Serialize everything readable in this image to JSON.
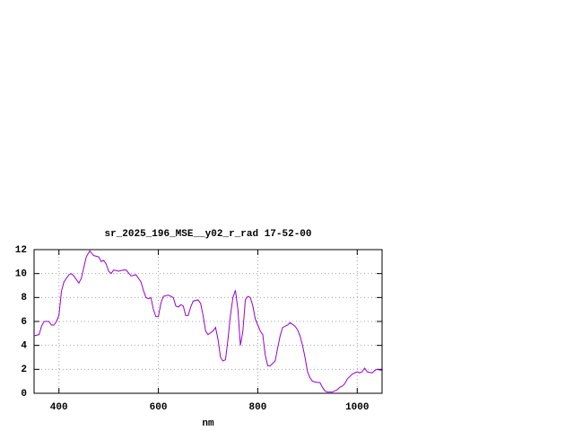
{
  "chart_data": {
    "type": "line",
    "title": "sr_2025_196_MSE__y02_r_rad 17-52-00",
    "x_label": "nm",
    "xlim": [
      350,
      1050
    ],
    "xticks": [
      400,
      600,
      800,
      1000
    ],
    "ylim": [
      0,
      12
    ],
    "yticks": [
      0,
      2,
      4,
      6,
      8,
      10,
      12
    ],
    "grid": true,
    "series": [
      {
        "color": "#9400d3",
        "x": [
          350,
          360,
          365,
          370,
          380,
          385,
          390,
          395,
          400,
          405,
          410,
          420,
          425,
          430,
          440,
          445,
          450,
          455,
          462,
          470,
          480,
          485,
          490,
          495,
          500,
          505,
          510,
          520,
          530,
          535,
          545,
          555,
          565,
          570,
          575,
          580,
          585,
          590,
          595,
          600,
          605,
          610,
          620,
          630,
          635,
          640,
          645,
          650,
          655,
          660,
          665,
          670,
          680,
          685,
          690,
          695,
          700,
          710,
          715,
          720,
          725,
          730,
          735,
          740,
          745,
          750,
          755,
          760,
          765,
          770,
          775,
          780,
          785,
          790,
          795,
          800,
          805,
          810,
          815,
          820,
          825,
          835,
          840,
          845,
          850,
          860,
          865,
          875,
          880,
          885,
          890,
          895,
          900,
          905,
          910,
          920,
          925,
          930,
          935,
          940,
          950,
          955,
          960,
          965,
          970,
          975,
          980,
          990,
          1000,
          1005,
          1010,
          1015,
          1020,
          1030,
          1035,
          1040,
          1050
        ],
        "values": [
          4.8,
          4.9,
          5.6,
          6.0,
          6.0,
          5.7,
          5.7,
          6.0,
          6.5,
          8.5,
          9.3,
          9.9,
          10.0,
          9.8,
          9.2,
          9.6,
          10.5,
          11.4,
          11.9,
          11.5,
          11.4,
          11.0,
          11.1,
          10.8,
          10.2,
          10.0,
          10.3,
          10.2,
          10.3,
          10.3,
          9.8,
          9.9,
          9.3,
          8.6,
          8.0,
          7.9,
          8.0,
          7.0,
          6.4,
          6.4,
          7.5,
          8.1,
          8.2,
          8.0,
          7.3,
          7.2,
          7.4,
          7.3,
          6.5,
          6.5,
          7.2,
          7.7,
          7.8,
          7.5,
          6.5,
          5.2,
          4.9,
          5.2,
          5.5,
          4.5,
          3.0,
          2.7,
          2.8,
          4.5,
          6.5,
          8.0,
          8.6,
          7.0,
          4.0,
          5.2,
          7.8,
          8.1,
          8.0,
          7.3,
          6.2,
          5.7,
          5.2,
          4.9,
          3.2,
          2.3,
          2.3,
          2.7,
          3.8,
          4.8,
          5.5,
          5.7,
          5.9,
          5.6,
          5.3,
          4.8,
          4.0,
          3.0,
          1.8,
          1.3,
          1.0,
          0.9,
          0.9,
          0.5,
          0.2,
          0.1,
          0.1,
          0.2,
          0.3,
          0.5,
          0.6,
          0.8,
          1.2,
          1.6,
          1.8,
          1.7,
          1.8,
          2.1,
          1.8,
          1.7,
          1.9,
          2.0,
          1.9
        ]
      }
    ]
  }
}
